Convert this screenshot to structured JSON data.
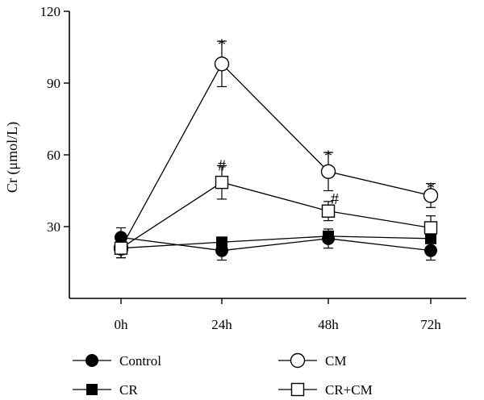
{
  "chart_data": {
    "type": "line",
    "title": "",
    "xlabel": "",
    "ylabel": "Cr (μmol/L)",
    "categories": [
      "0h",
      "24h",
      "48h",
      "72h"
    ],
    "ylim": [
      0,
      120
    ],
    "yticks": [
      30,
      60,
      90,
      120
    ],
    "grid": false,
    "legend_position": "bottom",
    "series": [
      {
        "name": "Control",
        "marker": "filled-circle",
        "values": [
          25.5,
          20,
          25,
          20
        ],
        "errors": [
          4,
          4,
          4,
          4
        ]
      },
      {
        "name": "CR",
        "marker": "filled-square",
        "values": [
          21,
          23.5,
          26,
          25
        ],
        "errors": [
          4,
          1.5,
          2,
          2
        ]
      },
      {
        "name": "CM",
        "marker": "open-circle",
        "values": [
          21,
          98,
          53,
          43
        ],
        "errors": [
          4,
          9.5,
          8,
          5
        ]
      },
      {
        "name": "CR+CM",
        "marker": "open-square",
        "values": [
          21,
          48.5,
          36.5,
          29.5
        ],
        "errors": [
          4,
          7,
          4,
          5
        ]
      }
    ],
    "annotations": [
      {
        "text": "*",
        "category": "24h",
        "value": 108
      },
      {
        "text": "*",
        "category": "48h",
        "value": 61.5
      },
      {
        "text": "*",
        "category": "72h",
        "value": 48
      },
      {
        "text": "#",
        "category": "24h",
        "value": 55.5
      },
      {
        "text": "#",
        "category": "48h",
        "value": 41.5
      }
    ]
  }
}
